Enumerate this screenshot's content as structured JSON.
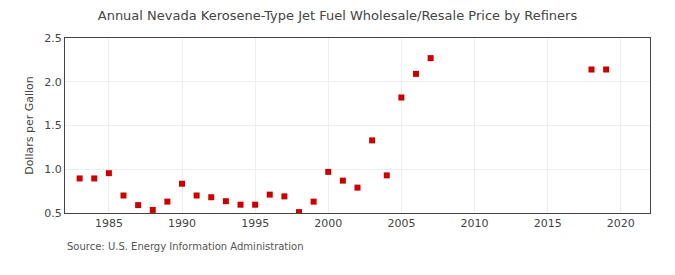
{
  "chart_data": {
    "type": "scatter",
    "title": "Annual Nevada Kerosene-Type Jet Fuel Wholesale/Resale Price by Refiners",
    "ylabel": "Dollars per Gallon",
    "annotations": [
      "Source: U.S. Energy Information Administration"
    ],
    "x": [
      1983,
      1984,
      1985,
      1986,
      1987,
      1988,
      1989,
      1990,
      1991,
      1992,
      1993,
      1994,
      1995,
      1996,
      1997,
      1998,
      1999,
      2000,
      2001,
      2002,
      2003,
      2004,
      2005,
      2006,
      2007,
      2018,
      2019
    ],
    "values": [
      0.895,
      0.895,
      0.955,
      0.7,
      0.59,
      0.535,
      0.63,
      0.835,
      0.7,
      0.68,
      0.635,
      0.595,
      0.595,
      0.71,
      0.69,
      0.51,
      0.63,
      0.97,
      0.87,
      0.79,
      1.33,
      0.93,
      1.82,
      2.09,
      2.27,
      2.14,
      2.14
    ],
    "color": "#cc0000",
    "marker": "square",
    "xlim": [
      1982,
      2022
    ],
    "ylim": [
      0.5,
      2.5
    ],
    "xticks": [
      1985,
      1990,
      1995,
      2000,
      2005,
      2010,
      2015,
      2020
    ],
    "yticks": [
      0.5,
      {
        "value": 1.0,
        "label": "1.0"
      },
      1.5,
      {
        "value": 2.0,
        "label": "2.0"
      },
      2.5
    ],
    "grid": true
  }
}
